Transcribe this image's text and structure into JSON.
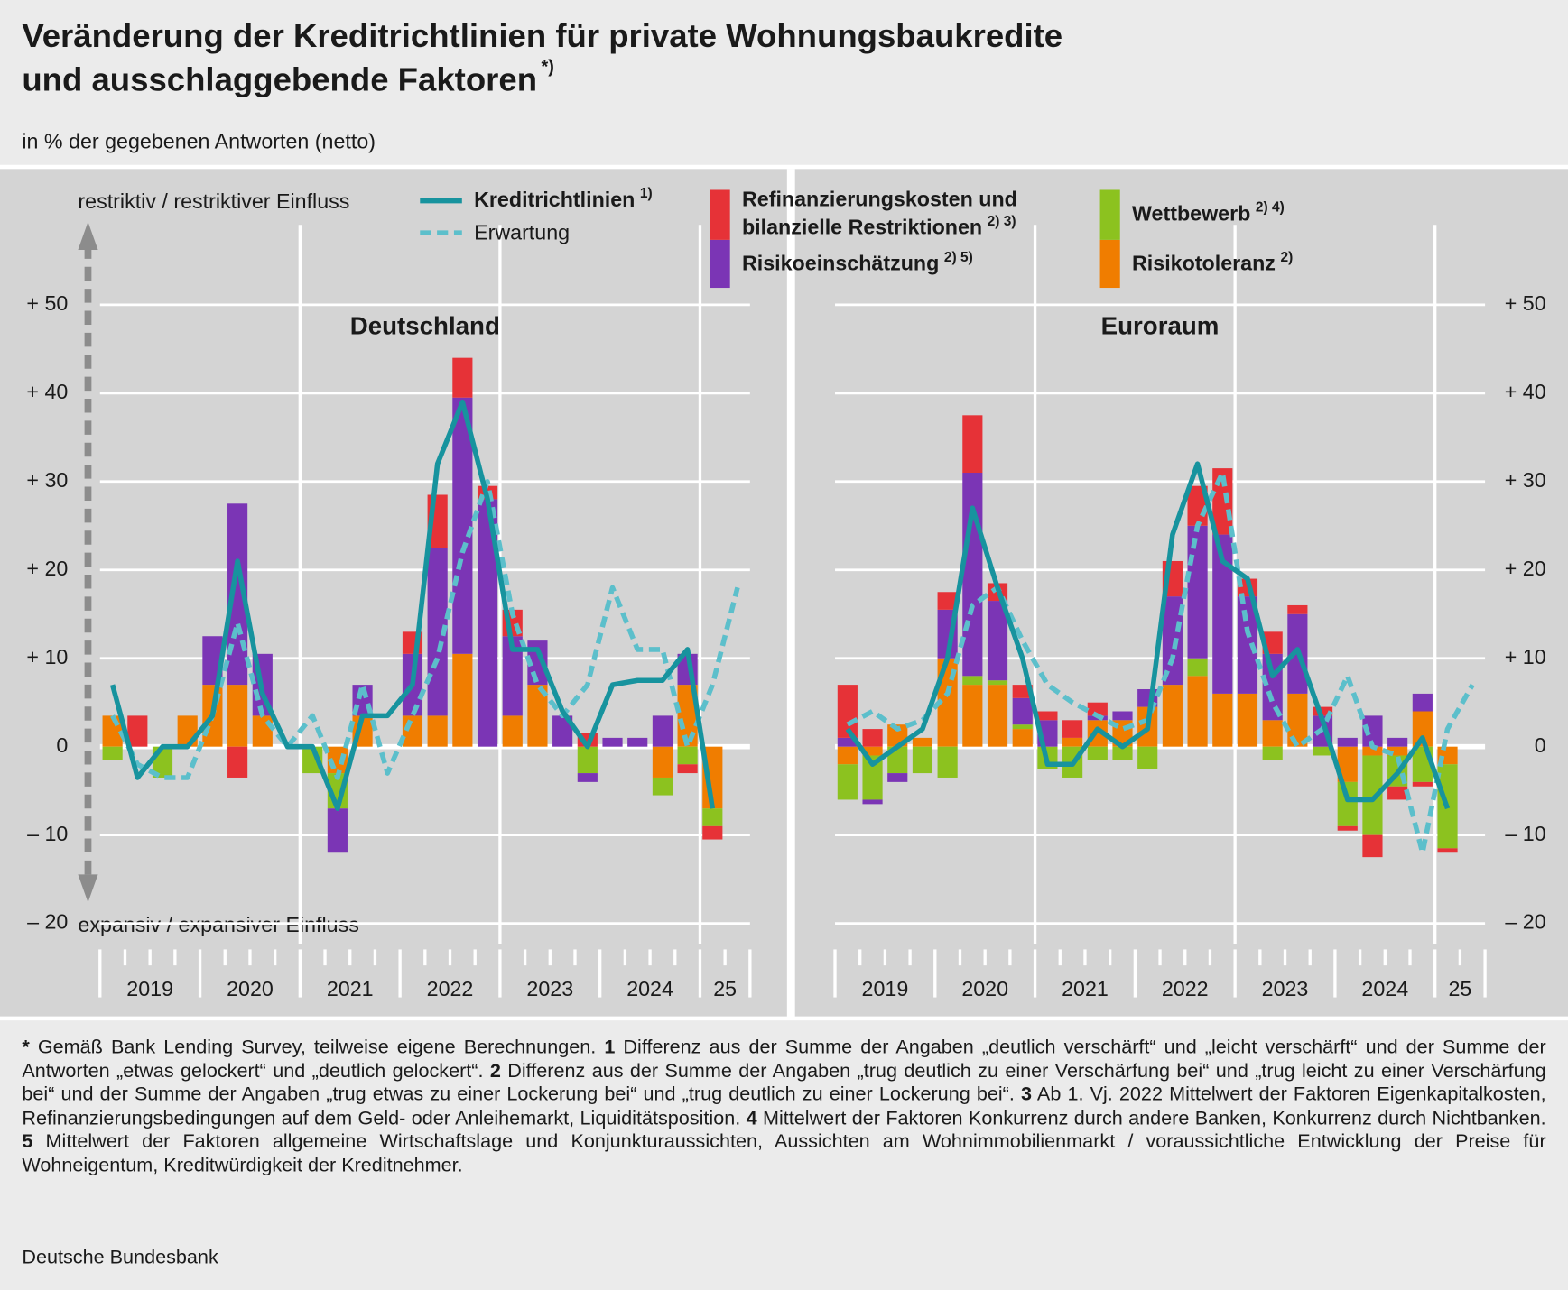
{
  "title_lines": [
    "Veränderung der Kreditrichtlinien für private Wohnungsbaukredite",
    "und ausschlaggebende Faktoren"
  ],
  "title_note": "*)",
  "subtitle": "in % der gegebenen Antworten (netto)",
  "axis_top_label": "restriktiv / restriktiver Einfluss",
  "axis_bottom_label": "expansiv / expansiver Einfluss",
  "chart_data": [
    {
      "type": "bar",
      "title": "Deutschland",
      "x_labels": [
        "2019",
        "2020",
        "2021",
        "2022",
        "2023",
        "2024",
        "25"
      ],
      "ylim": [
        -20,
        50
      ],
      "yticks": [
        {
          "value": 50,
          "label": "+ 50"
        },
        {
          "value": 40,
          "label": "+ 40"
        },
        {
          "value": 30,
          "label": "+ 30"
        },
        {
          "value": 20,
          "label": "+ 20"
        },
        {
          "value": 10,
          "label": "+ 10"
        },
        0,
        {
          "value": -10,
          "label": "– 10"
        },
        {
          "value": -20,
          "label": "– 20"
        }
      ],
      "series": [
        {
          "name": "Risikotoleranz",
          "note": "2)",
          "color": "#f07d00",
          "values": [
            3.5,
            0,
            0,
            3.5,
            7,
            7,
            3.5,
            0,
            0,
            -3,
            3.5,
            0,
            3.5,
            3.5,
            10.5,
            0,
            3.5,
            7,
            0,
            0,
            0,
            0,
            -3.5,
            7,
            -7
          ]
        },
        {
          "name": "Wettbewerb",
          "note": "2) 4)",
          "color": "#8cc21f",
          "values": [
            -1.5,
            0,
            -3.5,
            0,
            0,
            0,
            0,
            0,
            -3,
            -4,
            0,
            0,
            0,
            0,
            0,
            0,
            0,
            0,
            0,
            -3,
            0,
            0,
            -2,
            -2,
            -2
          ]
        },
        {
          "name": "Risikoeinschätzung",
          "note": "2) 5)",
          "color": "#7b35b5",
          "values": [
            0,
            0,
            0,
            0,
            5.5,
            20.5,
            7,
            0,
            0,
            -5,
            3.5,
            0,
            7,
            19,
            29,
            28,
            9,
            5,
            3.5,
            -1,
            1,
            1,
            3.5,
            3.5,
            0
          ]
        },
        {
          "name": "Refinanzierungskosten und\nbilanzielle Restriktionen",
          "note": "2) 3)",
          "color": "#e63237",
          "values": [
            0,
            3.5,
            0,
            0,
            0,
            -3.5,
            0,
            0,
            0,
            0,
            0,
            0,
            2.5,
            6,
            4.5,
            1.5,
            3,
            0,
            0,
            1.5,
            0,
            0,
            0,
            -1,
            -1.5
          ]
        },
        {
          "name": "Kreditrichtlinien",
          "note": "1)",
          "kind": "line",
          "color": "#17939e",
          "values": [
            7,
            -3.5,
            0,
            0,
            3.5,
            21,
            6,
            0,
            0,
            -7,
            3.5,
            3.5,
            7,
            32,
            39,
            28,
            11,
            11,
            4,
            0,
            7,
            7.5,
            7.5,
            11,
            -7
          ]
        },
        {
          "name": "Erwartung",
          "kind": "line",
          "dashed": true,
          "color": "#5cbfcb",
          "values": [
            3.5,
            -2,
            -3.5,
            -3.5,
            3.5,
            14,
            3.5,
            0,
            3.5,
            -3.5,
            7,
            -3,
            3.5,
            10,
            22,
            30,
            15,
            7,
            3.5,
            7,
            18,
            11,
            11,
            0,
            7,
            18
          ]
        }
      ]
    },
    {
      "type": "bar",
      "title": "Euroraum",
      "x_labels": [
        "2019",
        "2020",
        "2021",
        "2022",
        "2023",
        "2024",
        "25"
      ],
      "ylim": [
        -20,
        50
      ],
      "yticks": [
        {
          "value": 50,
          "label": "+ 50"
        },
        {
          "value": 40,
          "label": "+ 40"
        },
        {
          "value": 30,
          "label": "+ 30"
        },
        {
          "value": 20,
          "label": "+ 20"
        },
        {
          "value": 10,
          "label": "+ 10"
        },
        0,
        {
          "value": -10,
          "label": "– 10"
        },
        {
          "value": -20,
          "label": "– 20"
        }
      ],
      "series": [
        {
          "color": "#f07d00",
          "values": [
            -2,
            -1,
            2.5,
            1,
            10,
            7,
            7,
            2,
            0,
            1,
            3,
            3,
            4.5,
            7,
            8,
            6,
            6,
            3,
            6,
            0,
            -4,
            -1,
            -1,
            4,
            -2
          ]
        },
        {
          "color": "#8cc21f",
          "values": [
            -4,
            -5,
            -3,
            -3,
            -3.5,
            1,
            0.5,
            0.5,
            -2.5,
            -3.5,
            -1.5,
            -1.5,
            -2.5,
            0,
            2,
            0,
            0,
            -1.5,
            0,
            -1,
            -5,
            -9,
            -3.5,
            -4,
            -9.5
          ]
        },
        {
          "color": "#7b35b5",
          "values": [
            1,
            -0.5,
            -1,
            0,
            5.5,
            23,
            9,
            3,
            3,
            0,
            0.5,
            1,
            2,
            10,
            15,
            18,
            11,
            7.5,
            9,
            3.5,
            1,
            3.5,
            1,
            2,
            0
          ]
        },
        {
          "color": "#e63237",
          "values": [
            6,
            2,
            0,
            0,
            2,
            6.5,
            2,
            1.5,
            1,
            2,
            1.5,
            0,
            0,
            4,
            4.5,
            7.5,
            2,
            2.5,
            1,
            1,
            -0.5,
            -2.5,
            -1.5,
            -0.5,
            -0.5
          ]
        },
        {
          "kind": "line",
          "color": "#17939e",
          "values": [
            2,
            -2,
            0,
            2,
            10,
            27,
            18,
            10,
            -2,
            -2,
            2,
            0,
            2,
            24,
            32,
            21,
            19,
            8,
            11,
            3,
            -6,
            -6,
            -3,
            1,
            -7
          ]
        },
        {
          "kind": "line",
          "dashed": true,
          "color": "#5cbfcb",
          "values": [
            2.5,
            4,
            2,
            3,
            6,
            16,
            18,
            12,
            7,
            5,
            3.5,
            2,
            3,
            10,
            25,
            31,
            13,
            5,
            0,
            2,
            8,
            0,
            -1,
            -12,
            2,
            7
          ]
        }
      ]
    }
  ],
  "footnotes": [
    {
      "mark": "*",
      "text": "Gemäß Bank Lending Survey, teilweise eigene Berechnungen."
    },
    {
      "mark": "1",
      "text": "Differenz aus der Summe der Angaben „deutlich verschärft“ und „leicht verschärft“ und der Summe der Antworten „etwas gelockert“ und „deutlich gelockert“."
    },
    {
      "mark": "2",
      "text": "Differenz aus der Summe der Angaben „trug deutlich zu einer Verschärfung bei“ und „trug leicht zu einer Verschärfung bei“ und der Summe der Angaben „trug etwas zu einer Lockerung bei“ und „trug deutlich zu einer Lockerung bei“."
    },
    {
      "mark": "3",
      "text": "Ab 1. Vj. 2022 Mittelwert der Faktoren Eigenkapitalkosten, Refinanzierungsbedingungen auf dem Geld- oder Anleihemarkt, Liquiditätsposition."
    },
    {
      "mark": "4",
      "text": "Mittelwert der Faktoren Konkurrenz durch andere Banken, Konkurrenz durch Nichtbanken."
    },
    {
      "mark": "5",
      "text": "Mittelwert der Faktoren allgemeine Wirtschaftslage und Konjunkturaussichten, Aussichten am Wohnimmobilienmarkt / voraussichtliche Entwicklung der Preise für Wohneigentum, Kreditwürdigkeit der Kreditnehmer."
    }
  ],
  "source": "Deutsche Bundesbank"
}
